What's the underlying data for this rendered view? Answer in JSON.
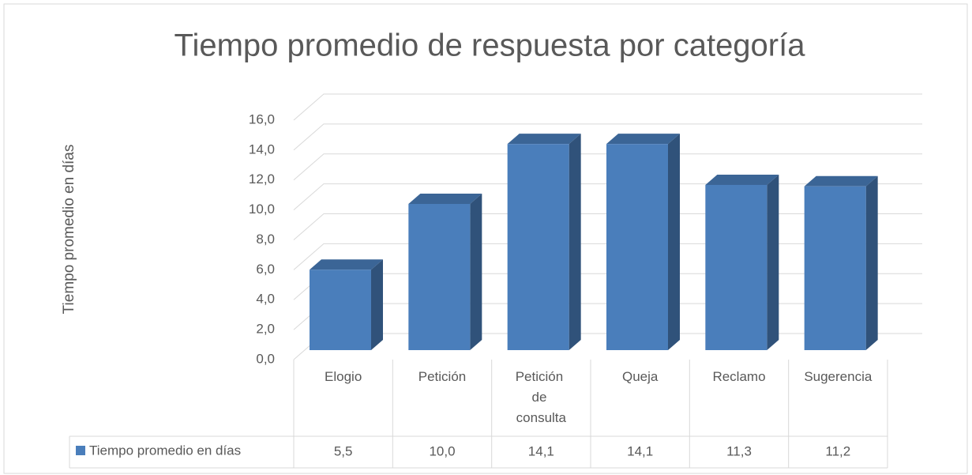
{
  "chart_data": {
    "type": "bar3d",
    "title": "Tiempo promedio de respuesta por categoría",
    "y_label": "Tiempo promedio en días",
    "categories": [
      "Elogio",
      "Petición",
      "Petición de consulta",
      "Queja",
      "Reclamo",
      "Sugerencia"
    ],
    "series": [
      {
        "name": "Tiempo promedio en días",
        "color": "#4a7ebb",
        "values": [
          5.5,
          10.0,
          14.1,
          14.1,
          11.3,
          11.2
        ],
        "value_labels": [
          "5,5",
          "10,0",
          "14,1",
          "14,1",
          "11,3",
          "11,2"
        ]
      }
    ],
    "ylim": [
      0,
      16
    ],
    "yticks": [
      {
        "value": 0,
        "label": "0,0"
      },
      {
        "value": 2,
        "label": "2,0"
      },
      {
        "value": 4,
        "label": "4,0"
      },
      {
        "value": 6,
        "label": "6,0"
      },
      {
        "value": 8,
        "label": "8,0"
      },
      {
        "value": 10,
        "label": "10,0"
      },
      {
        "value": 12,
        "label": "12,0"
      },
      {
        "value": 14,
        "label": "14,0"
      },
      {
        "value": 16,
        "label": "16,0"
      }
    ],
    "grid": true,
    "data_table": true
  }
}
